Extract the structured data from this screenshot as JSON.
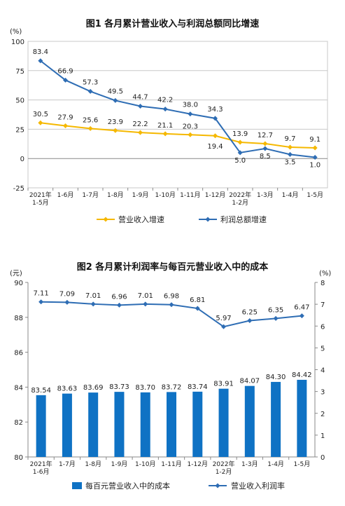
{
  "chart_data": [
    {
      "type": "line",
      "title": "图1  各月累计营业收入与利润总额同比增速",
      "ylabel": "(%)",
      "ylim": [
        -25,
        100
      ],
      "yticks": [
        "100",
        "75",
        "50",
        "25",
        "0",
        "-25"
      ],
      "grid": true,
      "legend_position": "bottom",
      "categories": [
        "2021年\n1-5月",
        "1-6月",
        "1-7月",
        "1-8月",
        "1-9月",
        "1-10月",
        "1-11月",
        "1-12月",
        "2022年\n1-2月",
        "1-3月",
        "1-4月",
        "1-5月"
      ],
      "series": [
        {
          "name": "营业收入增速",
          "color": "#f5b800",
          "values": [
            30.5,
            27.9,
            25.6,
            23.9,
            22.2,
            21.1,
            20.3,
            19.4,
            13.9,
            12.7,
            9.7,
            9.1
          ],
          "labels": [
            "30.5",
            "27.9",
            "25.6",
            "23.9",
            "22.2",
            "21.1",
            "20.3",
            "19.4",
            "13.9",
            "12.7",
            "9.7",
            "9.1"
          ]
        },
        {
          "name": "利润总额增速",
          "color": "#2e6db4",
          "values": [
            83.4,
            66.9,
            57.3,
            49.5,
            44.7,
            42.2,
            38.0,
            34.3,
            5.0,
            8.5,
            3.5,
            1.0
          ],
          "labels": [
            "83.4",
            "66.9",
            "57.3",
            "49.5",
            "44.7",
            "42.2",
            "38.0",
            "34.3",
            "5.0",
            "8.5",
            "3.5",
            "1.0"
          ]
        }
      ]
    },
    {
      "type": "bar",
      "title": "图2  各月累计利润率与每百元营业收入中的成本",
      "ylabel": "(元)",
      "ylabel_right": "(%)",
      "ylim": [
        80,
        90
      ],
      "ylim_right": [
        0,
        8
      ],
      "yticks": [
        "90",
        "88",
        "86",
        "84",
        "82",
        "80"
      ],
      "yticks_right": [
        "8",
        "7",
        "6",
        "5",
        "4",
        "3",
        "2",
        "1",
        "0"
      ],
      "grid": false,
      "legend_position": "bottom",
      "categories": [
        "2021年\n1-6月",
        "1-7月",
        "1-8月",
        "1-9月",
        "1-10月",
        "1-11月",
        "1-12月",
        "2022年\n1-2月",
        "1-3月",
        "1-4月",
        "1-5月"
      ],
      "series": [
        {
          "name": "每百元营业收入中的成本",
          "type": "bar",
          "axis": "left",
          "color": "#0f72c4",
          "values": [
            83.54,
            83.63,
            83.69,
            83.73,
            83.7,
            83.72,
            83.74,
            83.91,
            84.07,
            84.3,
            84.42
          ],
          "labels": [
            "83.54",
            "83.63",
            "83.69",
            "83.73",
            "83.70",
            "83.72",
            "83.74",
            "83.91",
            "84.07",
            "84.30",
            "84.42"
          ]
        },
        {
          "name": "营业收入利润率",
          "type": "line",
          "axis": "right",
          "color": "#2e6db4",
          "values": [
            7.11,
            7.09,
            7.01,
            6.96,
            7.01,
            6.98,
            6.81,
            5.97,
            6.25,
            6.35,
            6.47
          ],
          "labels": [
            "7.11",
            "7.09",
            "7.01",
            "6.96",
            "7.01",
            "6.98",
            "6.81",
            "5.97",
            "6.25",
            "6.35",
            "6.47"
          ]
        }
      ]
    }
  ]
}
